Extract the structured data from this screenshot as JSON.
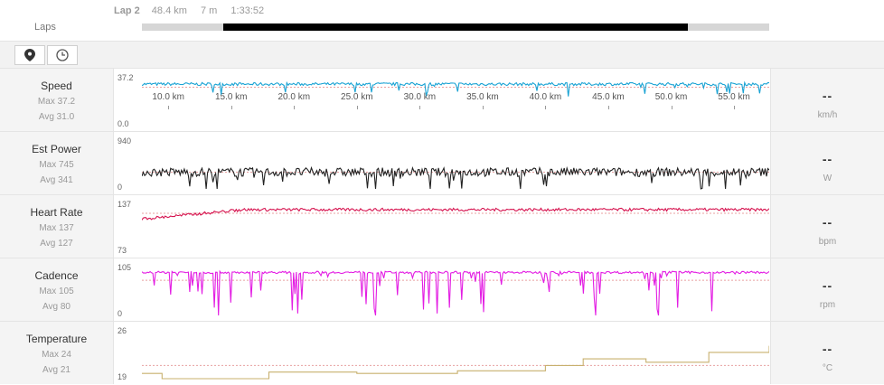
{
  "laps": {
    "label": "Laps",
    "current": {
      "name": "Lap 2",
      "distance": "48.4 km",
      "duration_short": "7 m",
      "duration": "1:33:52"
    },
    "lap_range": [
      0.13,
      0.87
    ]
  },
  "toolbar": {
    "map_icon": "map-pin-icon",
    "time_icon": "clock-icon"
  },
  "x_axis": {
    "min": 7.9,
    "max": 57.8,
    "ticks": [
      "10.0 km",
      "15.0 km",
      "20.0 km",
      "25.0 km",
      "30.0 km",
      "35.0 km",
      "40.0 km",
      "45.0 km",
      "50.0 km",
      "55.0 km"
    ],
    "tick_values": [
      10,
      15,
      20,
      25,
      30,
      35,
      40,
      45,
      50,
      55
    ]
  },
  "metrics": [
    {
      "key": "speed",
      "title": "Speed",
      "max_label": "Max 37.2",
      "avg_label": "Avg 31.0",
      "ymax": "37.2",
      "ymin": "0.0",
      "value": "--",
      "unit": "km/h",
      "color": "#1aa3d4",
      "chart_data": {
        "type": "line",
        "ylim": [
          0,
          37.2
        ],
        "avg": 31.0,
        "baseline": 33.5,
        "noise": 1.2,
        "spikes": 0.05,
        "spike_depth": 0.25
      }
    },
    {
      "key": "power",
      "title": "Est Power",
      "max_label": "Max 745",
      "avg_label": "Avg 341",
      "ymax": "940",
      "ymin": "0",
      "value": "--",
      "unit": "W",
      "color": "#222222",
      "chart_data": {
        "type": "line",
        "ylim": [
          0,
          940
        ],
        "avg": 341,
        "baseline": 341,
        "noise": 90,
        "spikes": 0.06,
        "spike_depth": 0.5
      }
    },
    {
      "key": "hr",
      "title": "Heart Rate",
      "max_label": "Max 137",
      "avg_label": "Avg 127",
      "ymax": "137",
      "ymin": "73",
      "value": "--",
      "unit": "bpm",
      "color": "#d6134f",
      "chart_data": {
        "type": "line",
        "ylim": [
          73,
          137
        ],
        "avg": 127,
        "baseline": 132,
        "noise": 2.0,
        "spikes": 0.0,
        "spike_depth": 0,
        "warmup": true
      }
    },
    {
      "key": "cadence",
      "title": "Cadence",
      "max_label": "Max 105",
      "avg_label": "Avg 80",
      "ymax": "105",
      "ymin": "0",
      "value": "--",
      "unit": "rpm",
      "color": "#e31de3",
      "chart_data": {
        "type": "line",
        "ylim": [
          0,
          105
        ],
        "avg": 80,
        "baseline": 98,
        "noise": 2.5,
        "spikes": 0.12,
        "spike_depth": 1.0
      }
    },
    {
      "key": "temp",
      "title": "Temperature",
      "max_label": "Max 24",
      "avg_label": "Avg 21",
      "ymax": "26",
      "ymin": "19",
      "value": "--",
      "unit": "°C",
      "color": "#c8b06e",
      "chart_data": {
        "type": "line",
        "ylim": [
          19,
          26
        ],
        "avg": 21,
        "steps": [
          [
            7.9,
            19.8
          ],
          [
            9.5,
            19
          ],
          [
            13,
            19
          ],
          [
            16.5,
            19
          ],
          [
            18,
            20
          ],
          [
            20,
            20
          ],
          [
            25,
            19.8
          ],
          [
            33,
            20.2
          ],
          [
            40,
            21
          ],
          [
            43,
            22
          ],
          [
            48,
            21.5
          ],
          [
            53,
            23
          ],
          [
            57.8,
            24
          ]
        ]
      }
    }
  ]
}
